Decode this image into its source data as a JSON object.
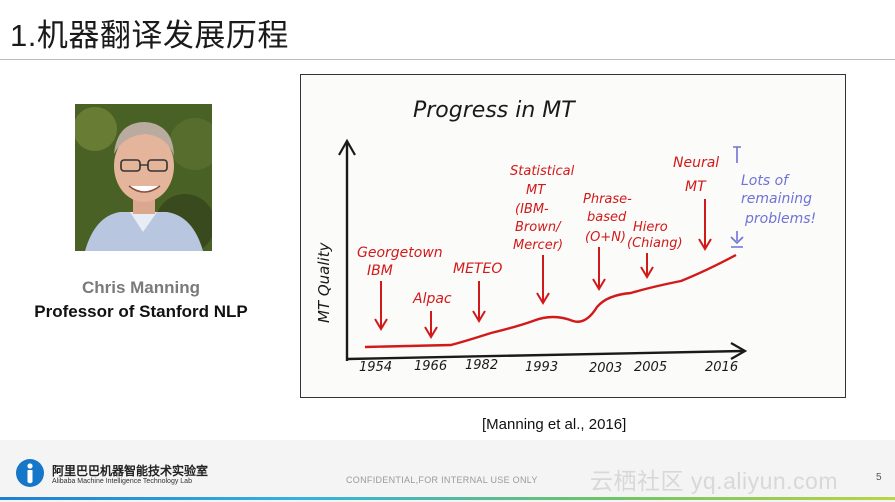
{
  "slide": {
    "title": "1.机器翻译发展历程",
    "page_number": "5"
  },
  "person": {
    "name": "Chris Manning",
    "role": "Professor of Stanford NLP"
  },
  "whiteboard": {
    "heading": "Progress in MT",
    "y_axis_label": "MT Quality",
    "x_ticks": [
      "1954",
      "1966",
      "1982",
      "1993",
      "2003",
      "2005",
      "2016"
    ],
    "annotations": [
      [
        "Georgetown",
        "IBM"
      ],
      [
        "Alpac"
      ],
      [
        "METEO"
      ],
      [
        "Statistical",
        "MT",
        "(IBM-",
        "Brown/",
        "Mercer)"
      ],
      [
        "Phrase-",
        "based",
        "(O+N)"
      ],
      [
        "Hiero",
        "(Chiang)"
      ],
      [
        "Neural",
        "MT"
      ]
    ],
    "side_note": [
      "Lots of",
      "remaining",
      "problems!"
    ],
    "colors": {
      "ink": "#1a1a1a",
      "red": "#d11a1a",
      "blue": "#6f72d6"
    }
  },
  "citation": "[Manning et al., 2016]",
  "footer": {
    "logo_cn": "阿里巴巴机器智能技术实验室",
    "logo_en": "Alibaba Machine Intelligence Technology Lab",
    "confidential": "CONFIDENTIAL,FOR INTERNAL USE ONLY",
    "watermark": "云栖社区 yq.aliyun.com"
  }
}
